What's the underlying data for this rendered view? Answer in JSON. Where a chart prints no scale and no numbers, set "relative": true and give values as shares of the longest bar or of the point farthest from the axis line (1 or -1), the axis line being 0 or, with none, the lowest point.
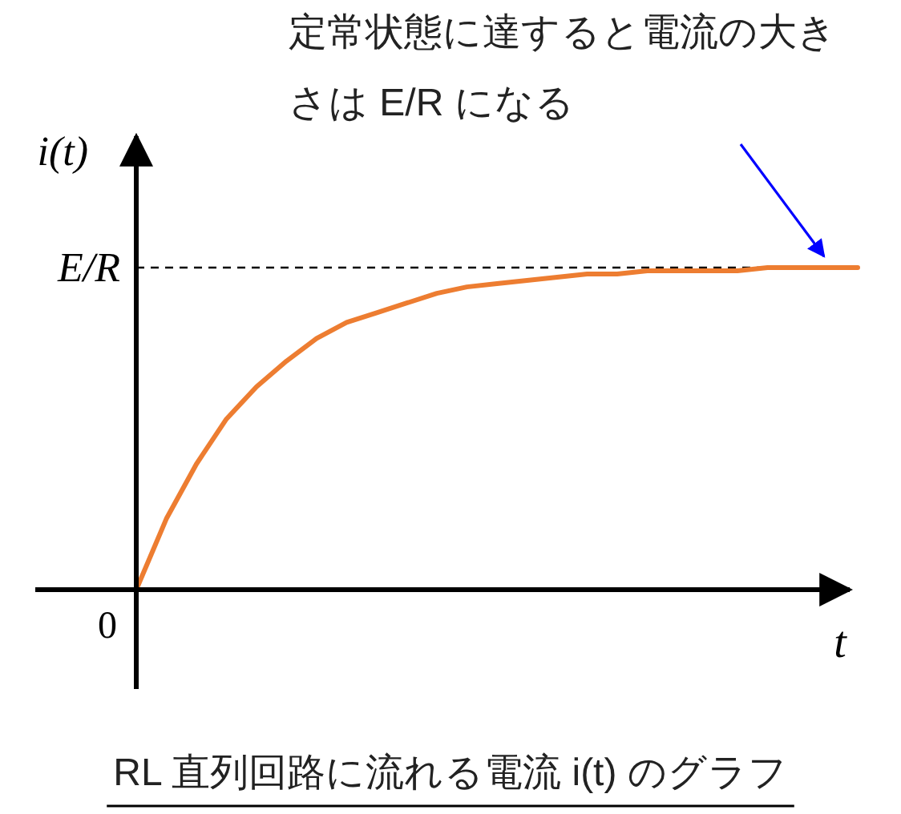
{
  "chart_data": {
    "type": "line",
    "title": "RL 直列回路に流れる電流 i(t) のグラフ",
    "xlabel": "t",
    "ylabel": "i(t)",
    "relative": true,
    "categories": [
      null,
      null,
      null,
      null,
      null,
      null,
      null,
      null,
      null,
      null,
      null,
      null,
      null,
      null,
      null,
      null,
      null,
      null,
      null,
      null,
      null,
      null,
      null,
      null,
      null
    ],
    "series": [
      {
        "color": "#ed7d31",
        "values": [
          0,
          0.22,
          0.39,
          0.53,
          0.63,
          0.71,
          0.78,
          0.83,
          0.86,
          0.89,
          0.92,
          0.94,
          0.95,
          0.96,
          0.97,
          0.98,
          0.98,
          0.99,
          0.99,
          0.99,
          0.99,
          1,
          1,
          1,
          1
        ]
      }
    ],
    "ref_lines": [
      {
        "axis": "y",
        "value": 1,
        "label": "E/R",
        "color": "#000000",
        "line_style": "dashed"
      }
    ],
    "annotations": [
      "定常状態に達すると電流の大きさは E/R になる",
      "0"
    ]
  }
}
